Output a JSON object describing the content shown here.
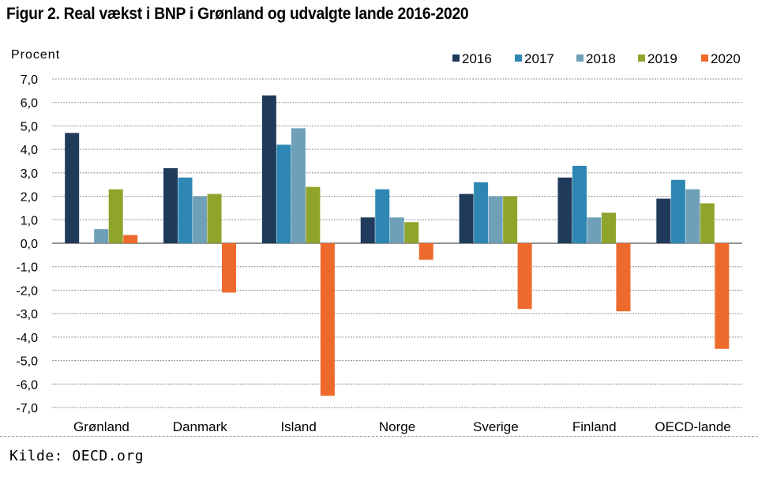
{
  "title": "Figur 2. Real vækst i BNP i Grønland og udvalgte lande 2016-2020",
  "source": "Kilde: OECD.org",
  "chart_data": {
    "type": "bar",
    "ylabel": "Procent",
    "ylim": [
      -7,
      7
    ],
    "ytick_step": 1,
    "ytick_labels": [
      "7,0",
      "6,0",
      "5,0",
      "4,0",
      "3,0",
      "2,0",
      "1,0",
      "0,0",
      "-1,0",
      "-2,0",
      "-3,0",
      "-4,0",
      "-5,0",
      "-6,0",
      "-7,0"
    ],
    "grid": true,
    "legend_position": "top-right",
    "categories": [
      "Grønland",
      "Danmark",
      "Island",
      "Norge",
      "Sverige",
      "Finland",
      "OECD-lande"
    ],
    "series": [
      {
        "name": "2016",
        "color": "#1f3a5a",
        "values": [
          4.7,
          3.2,
          6.3,
          1.1,
          2.1,
          2.8,
          1.9
        ]
      },
      {
        "name": "2017",
        "color": "#2e87b3",
        "values": [
          null,
          2.8,
          4.2,
          2.3,
          2.6,
          3.3,
          2.7
        ]
      },
      {
        "name": "2018",
        "color": "#6ea0b8",
        "values": [
          0.6,
          2.0,
          4.9,
          1.1,
          2.0,
          1.1,
          2.3
        ]
      },
      {
        "name": "2019",
        "color": "#8ea42a",
        "values": [
          2.3,
          2.1,
          2.4,
          0.9,
          2.0,
          1.3,
          1.7
        ]
      },
      {
        "name": "2020",
        "color": "#ee6a2c",
        "values": [
          0.35,
          -2.1,
          -6.5,
          -0.7,
          -2.8,
          -2.9,
          -4.5
        ]
      }
    ]
  }
}
